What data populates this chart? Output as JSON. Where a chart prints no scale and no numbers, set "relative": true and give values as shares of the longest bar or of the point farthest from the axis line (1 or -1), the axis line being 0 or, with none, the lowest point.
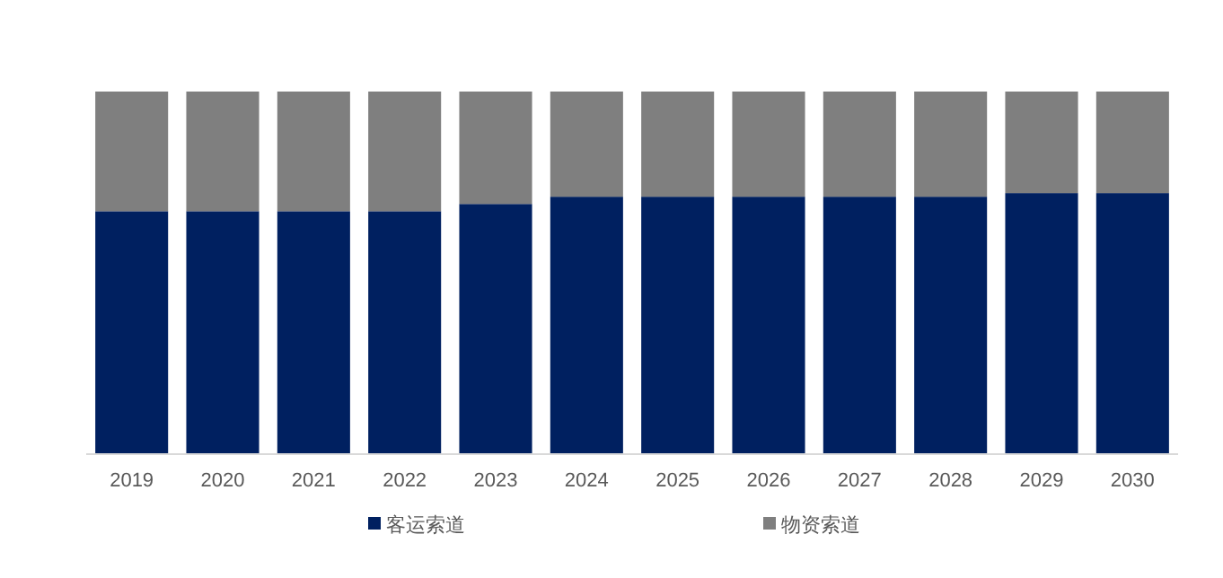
{
  "chart_data": {
    "type": "bar",
    "stacked": true,
    "relative": true,
    "legend": "bottom",
    "categories": [
      "2019",
      "2020",
      "2021",
      "2022",
      "2023",
      "2024",
      "2025",
      "2026",
      "2027",
      "2028",
      "2029",
      "2030"
    ],
    "series": [
      {
        "name": "客运索道",
        "color": "#002060",
        "values": [
          0.67,
          0.67,
          0.67,
          0.67,
          0.69,
          0.71,
          0.71,
          0.71,
          0.71,
          0.71,
          0.72,
          0.72
        ]
      },
      {
        "name": "物资索道",
        "color": "#7f7f7f",
        "values": [
          0.33,
          0.33,
          0.33,
          0.33,
          0.31,
          0.29,
          0.29,
          0.29,
          0.29,
          0.29,
          0.28,
          0.28
        ]
      }
    ]
  }
}
